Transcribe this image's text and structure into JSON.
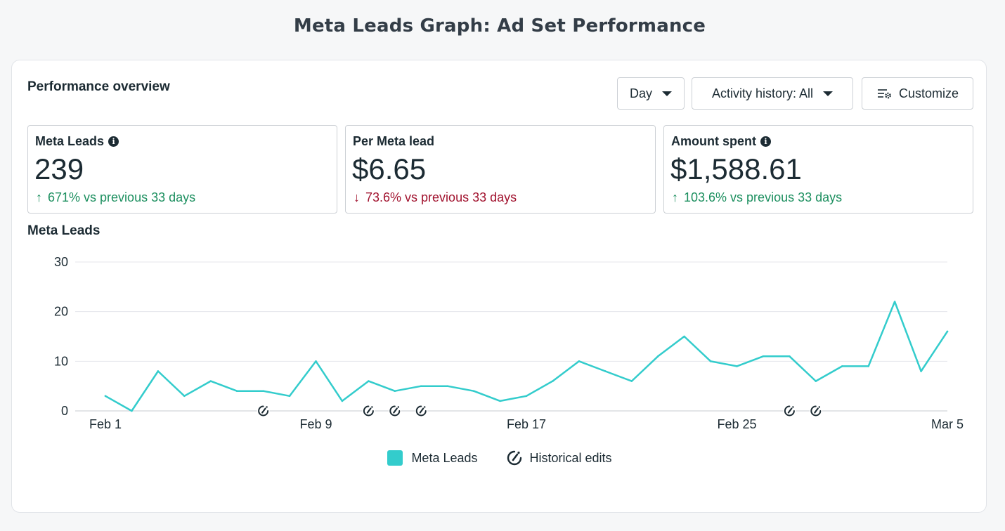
{
  "page": {
    "title": "Meta Leads Graph: Ad Set Performance"
  },
  "header": {
    "section_title": "Performance overview",
    "day_label": "Day",
    "activity_label": "Activity history: All",
    "customize_label": "Customize"
  },
  "metrics": [
    {
      "label": "Meta Leads",
      "value": "239",
      "change": "671% vs previous 33 days",
      "direction": "up",
      "info": true
    },
    {
      "label": "Per Meta lead",
      "value": "$6.65",
      "change": "73.6% vs previous 33 days",
      "direction": "down",
      "info": false
    },
    {
      "label": "Amount spent",
      "value": "$1,588.61",
      "change": "103.6% vs previous 33 days",
      "direction": "up",
      "info": true
    }
  ],
  "icons": {
    "arrow_up": "↑",
    "arrow_down": "↓",
    "info": "i"
  },
  "colors": {
    "line": "#33cccc",
    "up": "#1c8f5f",
    "down": "#a1122e"
  },
  "chart_data": {
    "type": "line",
    "title": "Meta Leads",
    "x": [
      "Feb 1",
      "Feb 2",
      "Feb 3",
      "Feb 4",
      "Feb 5",
      "Feb 6",
      "Feb 7",
      "Feb 8",
      "Feb 9",
      "Feb 10",
      "Feb 11",
      "Feb 12",
      "Feb 13",
      "Feb 14",
      "Feb 15",
      "Feb 16",
      "Feb 17",
      "Feb 18",
      "Feb 19",
      "Feb 20",
      "Feb 21",
      "Feb 22",
      "Feb 23",
      "Feb 24",
      "Feb 25",
      "Feb 26",
      "Feb 27",
      "Feb 28",
      "Mar 1",
      "Mar 2",
      "Mar 3",
      "Mar 4",
      "Mar 5"
    ],
    "series": [
      {
        "name": "Meta Leads",
        "values": [
          3,
          0,
          8,
          3,
          6,
          4,
          4,
          3,
          10,
          2,
          6,
          4,
          5,
          5,
          4,
          2,
          3,
          6,
          10,
          8,
          6,
          11,
          15,
          10,
          9,
          11,
          11,
          6,
          9,
          9,
          22,
          8,
          16
        ]
      }
    ],
    "x_tick_labels": [
      "Feb 1",
      "Feb 9",
      "Feb 17",
      "Feb 25",
      "Mar 5"
    ],
    "y_ticks": [
      0,
      10,
      20,
      30
    ],
    "ylim": [
      0,
      30
    ],
    "grid": true,
    "historical_edits": [
      "Feb 7",
      "Feb 11",
      "Feb 12",
      "Feb 13",
      "Feb 27",
      "Feb 28"
    ],
    "legend": [
      {
        "name": "Meta Leads"
      },
      {
        "name": "Historical edits"
      }
    ],
    "legend_position": "bottom-center"
  }
}
